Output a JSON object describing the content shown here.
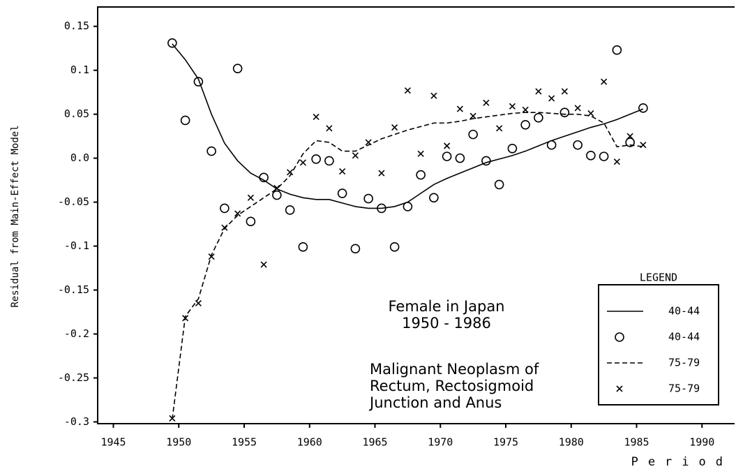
{
  "chart_data": {
    "type": "scatter",
    "ylabel": "Residual from Main-Effect Model",
    "xlabel": "Period",
    "annotations": [
      [
        "Female in Japan",
        "1950 - 1986"
      ],
      [
        "Malignant Neoplasm of",
        "Rectum, Rectosigmoid",
        "Junction and Anus"
      ]
    ],
    "legend_title": "LEGEND",
    "legend": "lower right",
    "xlim": [
      1943.8,
      1992.6
    ],
    "ylim": [
      -0.302,
      0.172
    ],
    "xticks": [
      1945,
      1950,
      1955,
      1960,
      1965,
      1970,
      1975,
      1980,
      1985,
      1990
    ],
    "yticks": [
      0.15,
      0.1,
      0.05,
      {
        "value": 0,
        "label": "0.0"
      },
      -0.05,
      -0.1,
      -0.15,
      -0.2,
      -0.25,
      -0.3
    ],
    "x": [
      1949.5,
      1950.5,
      1951.5,
      1952.5,
      1953.5,
      1954.5,
      1955.5,
      1956.5,
      1957.5,
      1958.5,
      1959.5,
      1960.5,
      1961.5,
      1962.5,
      1963.5,
      1964.5,
      1965.5,
      1966.5,
      1967.5,
      1968.5,
      1969.5,
      1970.5,
      1971.5,
      1972.5,
      1973.5,
      1974.5,
      1975.5,
      1976.5,
      1977.5,
      1978.5,
      1979.5,
      1980.5,
      1981.5,
      1982.5,
      1983.5,
      1984.5,
      1985.5
    ],
    "series": [
      {
        "name": "40-44",
        "mode": "line",
        "dash": false,
        "color": "#000",
        "values": [
          0.13,
          0.112,
          0.09,
          0.05,
          0.017,
          -0.003,
          -0.017,
          -0.025,
          -0.035,
          -0.041,
          -0.045,
          -0.047,
          -0.047,
          -0.051,
          -0.055,
          -0.057,
          -0.057,
          -0.055,
          -0.05,
          -0.04,
          -0.03,
          -0.023,
          -0.017,
          -0.011,
          -0.005,
          -0.001,
          0.003,
          0.008,
          0.014,
          0.02,
          0.025,
          0.03,
          0.035,
          0.039,
          0.044,
          0.05,
          0.056
        ]
      },
      {
        "name": "40-44",
        "mode": "circle",
        "color": "#000",
        "values": [
          0.131,
          0.043,
          0.087,
          0.008,
          -0.057,
          0.102,
          -0.072,
          -0.022,
          -0.042,
          -0.059,
          -0.101,
          -0.001,
          -0.003,
          -0.04,
          -0.103,
          -0.046,
          -0.057,
          -0.101,
          -0.055,
          -0.019,
          -0.045,
          0.002,
          0.0,
          0.027,
          -0.003,
          -0.03,
          0.011,
          0.038,
          0.046,
          0.015,
          0.052,
          0.015,
          0.003,
          0.002,
          0.123,
          0.018,
          0.057
        ]
      },
      {
        "name": "75-79",
        "mode": "line",
        "dash": true,
        "color": "#000",
        "values": [
          -0.297,
          -0.18,
          -0.16,
          -0.11,
          -0.08,
          -0.065,
          -0.055,
          -0.045,
          -0.035,
          -0.02,
          0.005,
          0.02,
          0.018,
          0.008,
          0.008,
          0.015,
          0.022,
          0.027,
          0.032,
          0.036,
          0.04,
          0.04,
          0.042,
          0.045,
          0.047,
          0.049,
          0.051,
          0.052,
          0.052,
          0.051,
          0.05,
          0.05,
          0.048,
          0.04,
          0.013,
          0.015,
          0.013
        ]
      },
      {
        "name": "75-79",
        "mode": "cross",
        "color": "#000",
        "values": [
          -0.296,
          -0.182,
          -0.165,
          -0.112,
          -0.079,
          -0.063,
          -0.045,
          -0.121,
          -0.034,
          -0.016,
          -0.005,
          0.047,
          0.034,
          -0.015,
          0.003,
          0.018,
          -0.017,
          0.035,
          0.077,
          0.005,
          0.071,
          0.014,
          0.056,
          0.048,
          0.063,
          0.034,
          0.059,
          0.055,
          0.076,
          0.068,
          0.076,
          0.057,
          0.051,
          0.087,
          -0.004,
          0.025,
          0.015
        ]
      }
    ]
  }
}
